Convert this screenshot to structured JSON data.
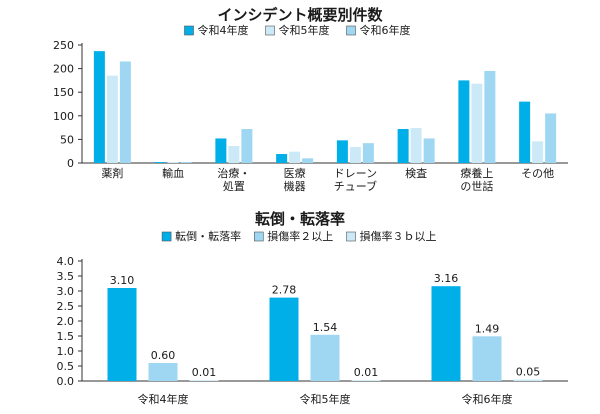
{
  "chart_data": [
    {
      "type": "bar",
      "title": "インシデント概要別件数",
      "categories": [
        "薬剤",
        "輸血",
        "治療・\n処置",
        "医療\n機器",
        "ドレーン\nチューブ",
        "検査",
        "療養上\nの世話",
        "その他"
      ],
      "series": [
        {
          "name": "令和4年度",
          "color": "#00aee8",
          "values": [
            237,
            2,
            52,
            19,
            48,
            72,
            175,
            130
          ]
        },
        {
          "name": "令和5年度",
          "color": "#cce9f8",
          "values": [
            185,
            2,
            36,
            24,
            34,
            74,
            168,
            46
          ]
        },
        {
          "name": "令和6年度",
          "color": "#9fd6f2",
          "values": [
            215,
            2,
            72,
            10,
            42,
            52,
            195,
            105
          ]
        }
      ],
      "ylim": [
        0,
        250
      ],
      "yticks": [
        "0",
        "50",
        "100",
        "150",
        "200",
        "250"
      ],
      "xlabel": "",
      "ylabel": "",
      "legend": "top"
    },
    {
      "type": "bar",
      "title": "転倒・転落率",
      "categories": [
        "令和4年度",
        "令和5年度",
        "令和6年度"
      ],
      "series": [
        {
          "name": "転倒・転落率",
          "color": "#00aee8",
          "values": [
            3.1,
            2.78,
            3.16
          ],
          "labels": [
            "3.10",
            "2.78",
            "3.16"
          ]
        },
        {
          "name": "損傷率２以上",
          "color": "#9fd6f2",
          "values": [
            0.6,
            1.54,
            1.49
          ],
          "labels": [
            "0.60",
            "1.54",
            "1.49"
          ]
        },
        {
          "name": "損傷率３ｂ以上",
          "color": "#cce9f8",
          "values": [
            0.01,
            0.01,
            0.05
          ],
          "labels": [
            "0.01",
            "0.01",
            "0.05"
          ]
        }
      ],
      "ylim": [
        0,
        4.0
      ],
      "yticks": [
        "0.0",
        "0.5",
        "1.0",
        "1.5",
        "2.0",
        "2.5",
        "3.0",
        "3.5",
        "4.0"
      ],
      "xlabel": "",
      "ylabel": "",
      "legend": "top"
    }
  ]
}
